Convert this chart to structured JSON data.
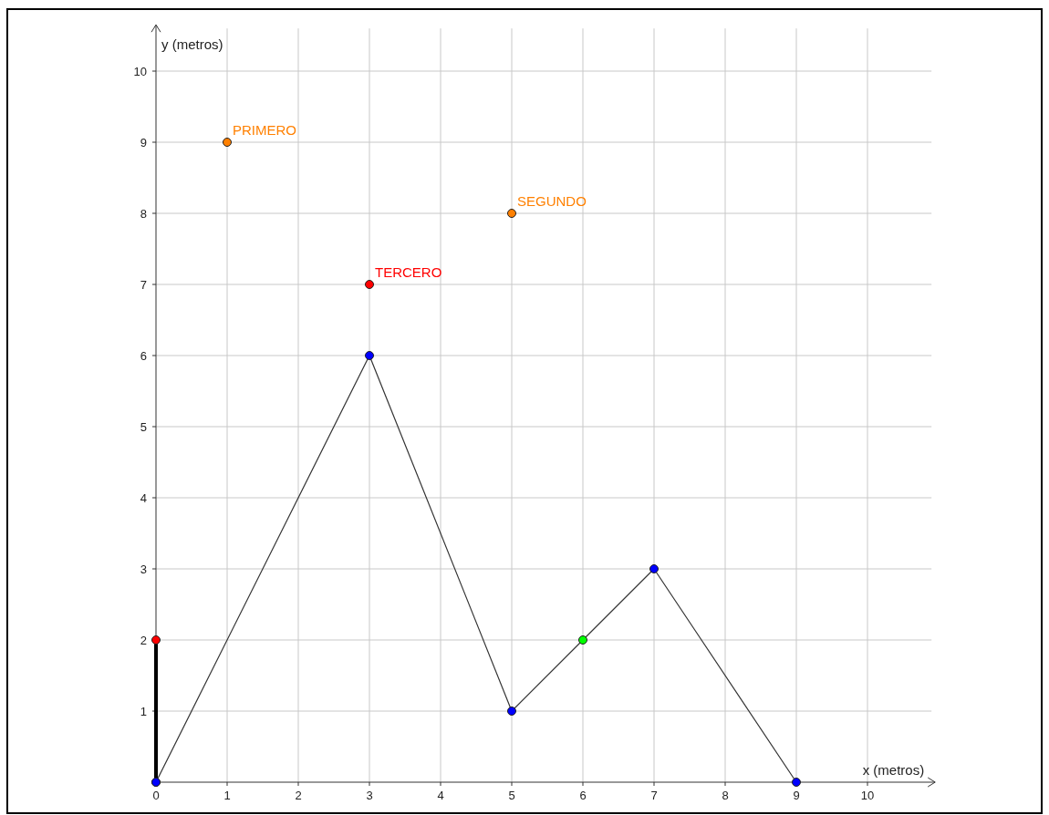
{
  "chart_data": {
    "type": "line",
    "xlabel": "x (metros)",
    "ylabel": "y (metros)",
    "xlim": [
      0,
      10.9
    ],
    "ylim": [
      0,
      10.6
    ],
    "xticks": [
      0,
      1,
      2,
      3,
      4,
      5,
      6,
      7,
      8,
      9,
      10
    ],
    "yticks": [
      {
        "value": 0,
        "label": null
      },
      1,
      2,
      3,
      4,
      5,
      6,
      7,
      8,
      9,
      10
    ],
    "grid": true,
    "marker": "circle",
    "series": [
      {
        "color": "#333333",
        "x": [
          0,
          3,
          5,
          6,
          7,
          9
        ],
        "values": [
          0,
          6,
          1,
          2,
          3,
          0
        ],
        "colors": [
          "#0000ff",
          "#0000ff",
          "#0000ff",
          "#00ff00",
          "#0000ff",
          "#0000ff"
        ]
      },
      {
        "color": "#000000",
        "x": [
          0,
          0
        ],
        "values": [
          0,
          2
        ],
        "colors": [
          "#0000ff",
          "#ff0000"
        ]
      },
      {
        "type": "scatter",
        "name": "PRIMERO",
        "color": "#ff8000",
        "x": [
          1
        ],
        "values": [
          9
        ]
      },
      {
        "type": "scatter",
        "name": "SEGUNDO",
        "color": "#ff8000",
        "x": [
          5
        ],
        "values": [
          8
        ]
      },
      {
        "type": "scatter",
        "name": "TERCERO",
        "color": "#ff0000",
        "x": [
          3
        ],
        "values": [
          7
        ]
      }
    ]
  }
}
